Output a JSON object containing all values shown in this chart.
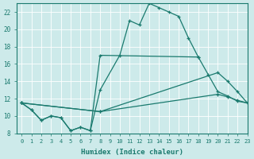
{
  "title": "",
  "xlabel": "Humidex (Indice chaleur)",
  "ylabel": "",
  "bg_color": "#cdeaea",
  "line_color": "#1a7a6e",
  "grid_color": "#ffffff",
  "xlim": [
    -0.5,
    23
  ],
  "ylim": [
    8,
    23
  ],
  "xticks": [
    0,
    1,
    2,
    3,
    4,
    5,
    6,
    7,
    8,
    9,
    10,
    11,
    12,
    13,
    14,
    15,
    16,
    17,
    18,
    19,
    20,
    21,
    22,
    23
  ],
  "yticks": [
    8,
    10,
    12,
    14,
    16,
    18,
    20,
    22
  ],
  "line1_x": [
    0,
    1,
    2,
    3,
    4,
    5,
    6,
    7,
    8,
    10,
    11,
    12,
    13,
    14,
    15,
    16,
    17,
    18
  ],
  "line1_y": [
    11.5,
    10.7,
    9.5,
    10.0,
    9.8,
    8.3,
    8.7,
    8.3,
    13.0,
    17.0,
    21.0,
    20.5,
    23.0,
    22.5,
    22.0,
    21.5,
    19.0,
    16.8
  ],
  "line2_x": [
    0,
    1,
    2,
    3,
    4,
    5,
    6,
    7,
    8,
    18,
    19,
    20,
    21,
    22,
    23
  ],
  "line2_y": [
    11.5,
    10.7,
    9.5,
    10.0,
    9.8,
    8.3,
    8.7,
    8.3,
    17.0,
    16.8,
    14.8,
    12.8,
    12.3,
    11.7,
    11.5
  ],
  "line3_x": [
    0,
    8,
    20,
    21,
    22,
    23
  ],
  "line3_y": [
    11.5,
    10.5,
    15.0,
    14.0,
    12.8,
    11.5
  ],
  "line4_x": [
    0,
    8,
    20,
    21,
    22,
    23
  ],
  "line4_y": [
    11.5,
    10.5,
    12.5,
    12.2,
    11.8,
    11.5
  ]
}
